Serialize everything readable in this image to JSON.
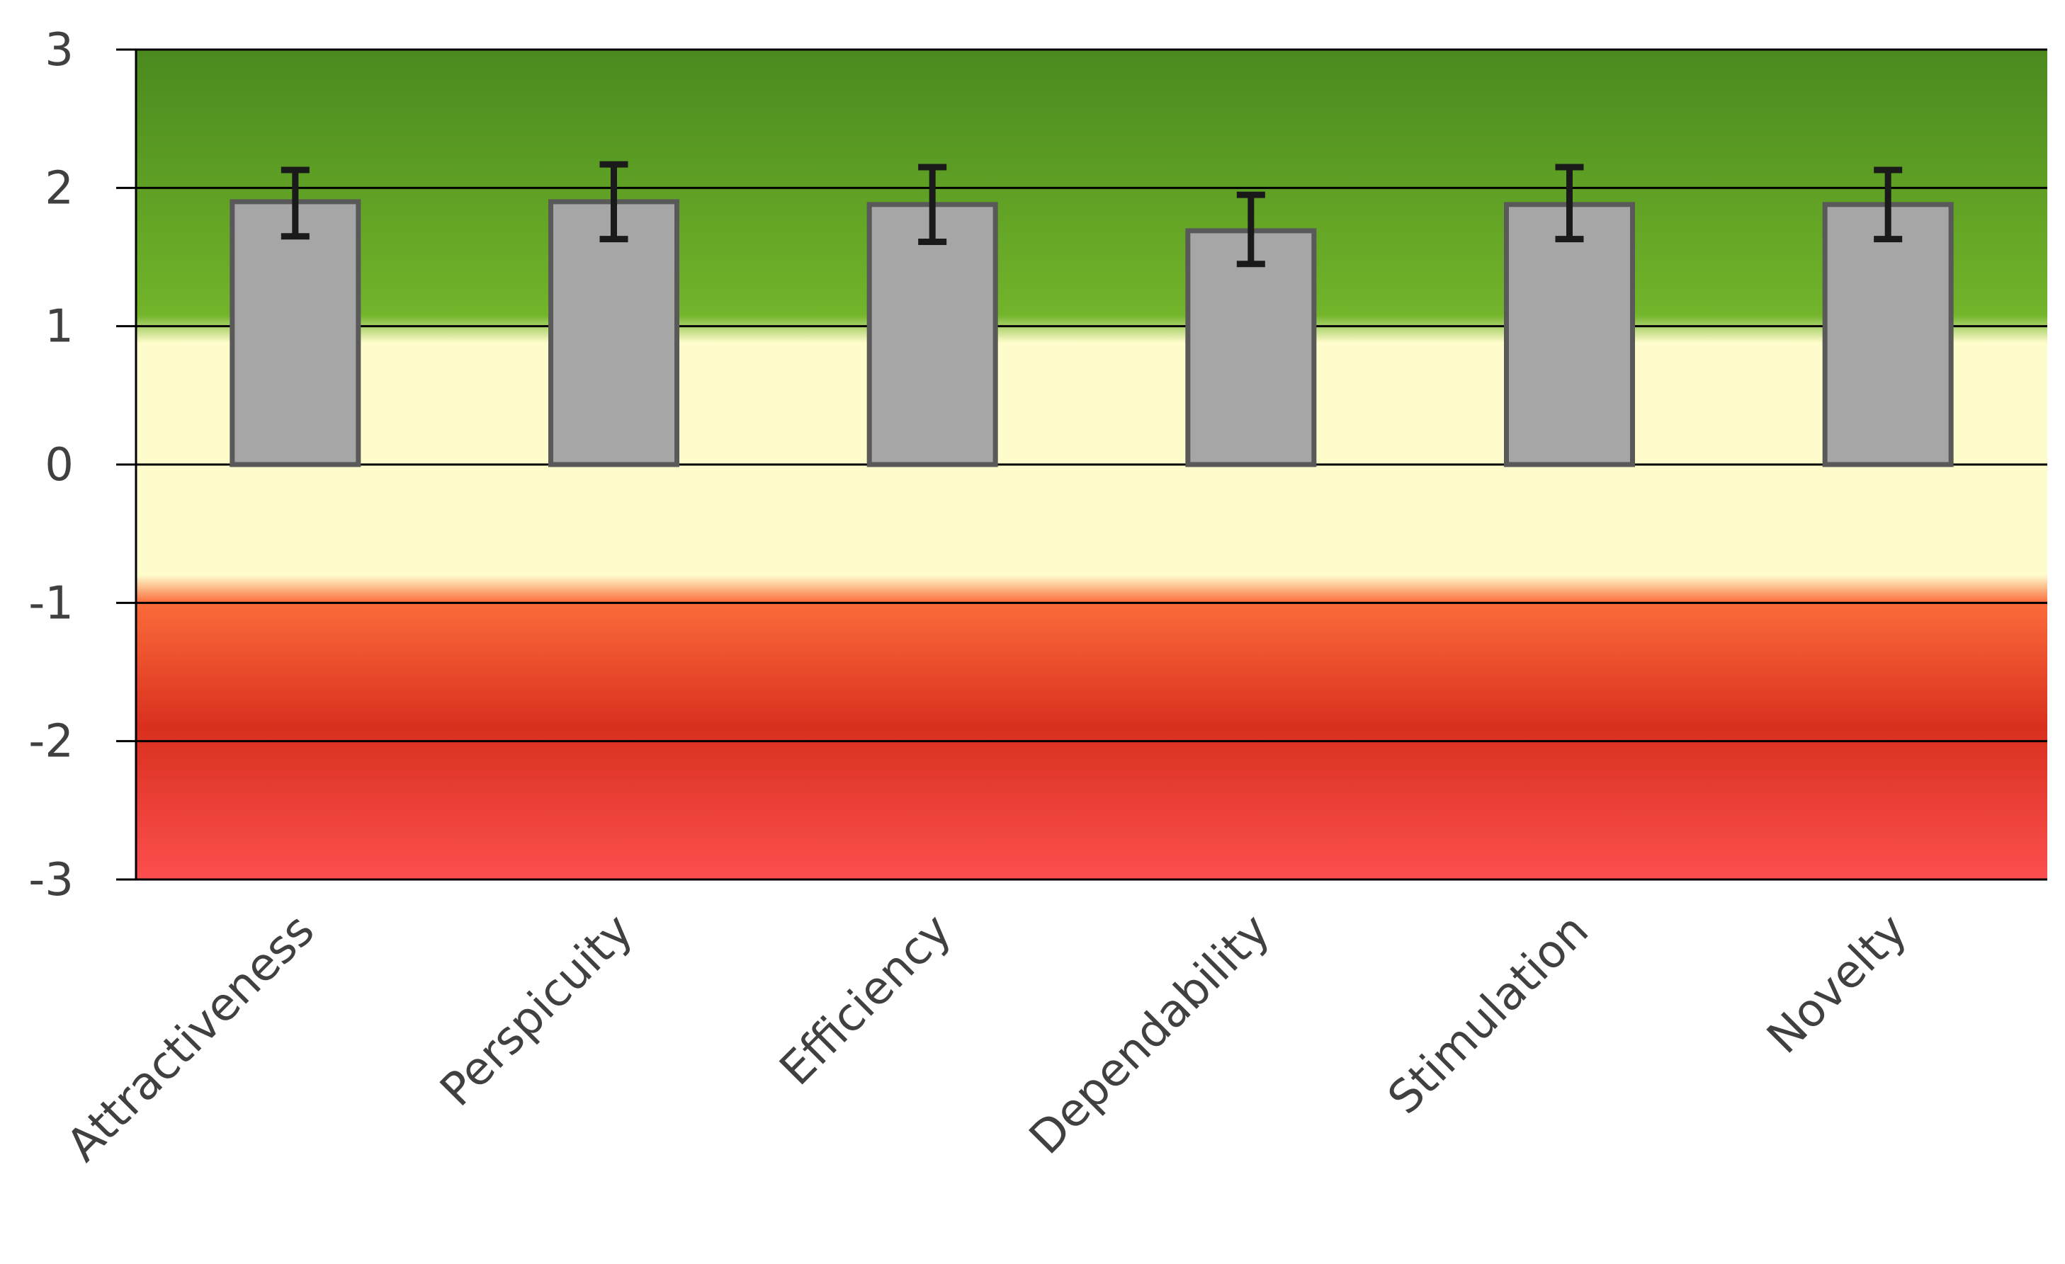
{
  "chart_data": {
    "type": "bar",
    "categories": [
      "Attractiveness",
      "Perspicuity",
      "Efficiency",
      "Dependability",
      "Stimulation",
      "Novelty"
    ],
    "values": [
      1.9,
      1.9,
      1.88,
      1.69,
      1.88,
      1.88
    ],
    "error_low": [
      1.65,
      1.63,
      1.61,
      1.45,
      1.63,
      1.63
    ],
    "error_high": [
      2.13,
      2.17,
      2.15,
      1.95,
      2.15,
      2.13
    ],
    "yticks": [
      "3",
      "2",
      "1",
      "0",
      "-1",
      "-2",
      "-3"
    ],
    "ytick_values": [
      3,
      2,
      1,
      0,
      -1,
      -2,
      -3
    ],
    "ylim": [
      -3,
      3
    ],
    "grid": true,
    "background_bands": [
      {
        "from": 1,
        "to": 3,
        "color_top": "#4a8a1f",
        "color_bottom": "#72b42a"
      },
      {
        "from": -1,
        "to": 1,
        "color": "#fefccb"
      },
      {
        "from": -3,
        "to": -1,
        "color_top": "#fb6b3a",
        "color_mid": "#d9301e",
        "color_bottom": "#fc4f4f"
      }
    ],
    "bar_color": "#a6a6a6",
    "bar_edge_color": "#595959",
    "error_bar_color": "#1a1a1a"
  }
}
